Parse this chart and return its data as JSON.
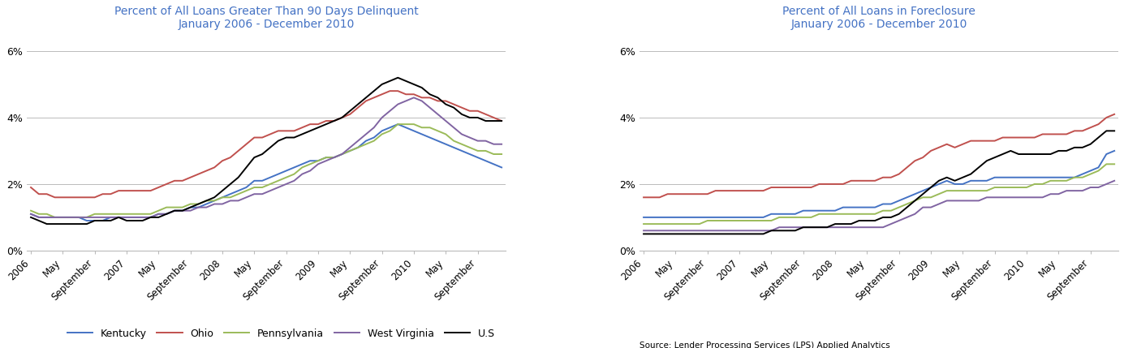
{
  "title1": "Percent of All Loans Greater Than 90 Days Delinquent",
  "title2": "Percent of All Loans in Foreclosure",
  "subtitle": "January 2006 - December 2010",
  "title_color": "#4472C4",
  "source_text": "Source: Lender Processing Services (LPS) Applied Analytics\nPrepared by the Federal Reserve Bank of Cleveland's Community Development team",
  "legend_labels": [
    "Kentucky",
    "Ohio",
    "Pennsylvania",
    "West Virginia",
    "U.S"
  ],
  "line_colors": [
    "#4472C4",
    "#C0504D",
    "#9BBB59",
    "#8064A2",
    "#000000"
  ],
  "x_tick_labels": [
    "2006",
    "May",
    "September",
    "2007",
    "May",
    "September",
    "2008",
    "May",
    "September",
    "2009",
    "May",
    "September",
    "2010",
    "May",
    "September"
  ],
  "ylim": [
    0,
    0.065
  ],
  "yticks": [
    0,
    0.02,
    0.04,
    0.06
  ],
  "ytick_labels": [
    "0%",
    "2%",
    "4%",
    "6%"
  ],
  "delinquent": {
    "Kentucky": [
      0.011,
      0.01,
      0.01,
      0.01,
      0.01,
      0.01,
      0.01,
      0.009,
      0.009,
      0.009,
      0.01,
      0.01,
      0.01,
      0.01,
      0.01,
      0.01,
      0.011,
      0.011,
      0.012,
      0.012,
      0.013,
      0.013,
      0.014,
      0.015,
      0.016,
      0.017,
      0.018,
      0.019,
      0.021,
      0.021,
      0.022,
      0.023,
      0.024,
      0.025,
      0.026,
      0.027,
      0.027,
      0.028,
      0.028,
      0.029,
      0.03,
      0.031,
      0.033,
      0.034,
      0.036,
      0.037,
      0.038,
      0.037,
      0.036,
      0.035,
      0.034,
      0.033,
      0.032,
      0.031,
      0.03,
      0.029,
      0.028,
      0.027,
      0.026,
      0.025
    ],
    "Ohio": [
      0.019,
      0.017,
      0.017,
      0.016,
      0.016,
      0.016,
      0.016,
      0.016,
      0.016,
      0.017,
      0.017,
      0.018,
      0.018,
      0.018,
      0.018,
      0.018,
      0.019,
      0.02,
      0.021,
      0.021,
      0.022,
      0.023,
      0.024,
      0.025,
      0.027,
      0.028,
      0.03,
      0.032,
      0.034,
      0.034,
      0.035,
      0.036,
      0.036,
      0.036,
      0.037,
      0.038,
      0.038,
      0.039,
      0.039,
      0.04,
      0.041,
      0.043,
      0.045,
      0.046,
      0.047,
      0.048,
      0.048,
      0.047,
      0.047,
      0.046,
      0.046,
      0.045,
      0.045,
      0.044,
      0.043,
      0.042,
      0.042,
      0.041,
      0.04,
      0.039
    ],
    "Pennsylvania": [
      0.012,
      0.011,
      0.011,
      0.01,
      0.01,
      0.01,
      0.01,
      0.01,
      0.011,
      0.011,
      0.011,
      0.011,
      0.011,
      0.011,
      0.011,
      0.011,
      0.012,
      0.013,
      0.013,
      0.013,
      0.014,
      0.014,
      0.015,
      0.015,
      0.016,
      0.016,
      0.017,
      0.018,
      0.019,
      0.019,
      0.02,
      0.021,
      0.022,
      0.023,
      0.025,
      0.026,
      0.027,
      0.028,
      0.028,
      0.029,
      0.03,
      0.031,
      0.032,
      0.033,
      0.035,
      0.036,
      0.038,
      0.038,
      0.038,
      0.037,
      0.037,
      0.036,
      0.035,
      0.033,
      0.032,
      0.031,
      0.03,
      0.03,
      0.029,
      0.029
    ],
    "West Virginia": [
      0.011,
      0.01,
      0.01,
      0.01,
      0.01,
      0.01,
      0.01,
      0.01,
      0.01,
      0.01,
      0.01,
      0.01,
      0.01,
      0.01,
      0.01,
      0.01,
      0.011,
      0.011,
      0.012,
      0.012,
      0.012,
      0.013,
      0.013,
      0.014,
      0.014,
      0.015,
      0.015,
      0.016,
      0.017,
      0.017,
      0.018,
      0.019,
      0.02,
      0.021,
      0.023,
      0.024,
      0.026,
      0.027,
      0.028,
      0.029,
      0.031,
      0.033,
      0.035,
      0.037,
      0.04,
      0.042,
      0.044,
      0.045,
      0.046,
      0.045,
      0.043,
      0.041,
      0.039,
      0.037,
      0.035,
      0.034,
      0.033,
      0.033,
      0.032,
      0.032
    ],
    "U.S": [
      0.01,
      0.009,
      0.008,
      0.008,
      0.008,
      0.008,
      0.008,
      0.008,
      0.009,
      0.009,
      0.009,
      0.01,
      0.009,
      0.009,
      0.009,
      0.01,
      0.01,
      0.011,
      0.012,
      0.012,
      0.013,
      0.014,
      0.015,
      0.016,
      0.018,
      0.02,
      0.022,
      0.025,
      0.028,
      0.029,
      0.031,
      0.033,
      0.034,
      0.034,
      0.035,
      0.036,
      0.037,
      0.038,
      0.039,
      0.04,
      0.042,
      0.044,
      0.046,
      0.048,
      0.05,
      0.051,
      0.052,
      0.051,
      0.05,
      0.049,
      0.047,
      0.046,
      0.044,
      0.043,
      0.041,
      0.04,
      0.04,
      0.039,
      0.039,
      0.039
    ]
  },
  "foreclosure": {
    "Kentucky": [
      0.01,
      0.01,
      0.01,
      0.01,
      0.01,
      0.01,
      0.01,
      0.01,
      0.01,
      0.01,
      0.01,
      0.01,
      0.01,
      0.01,
      0.01,
      0.01,
      0.011,
      0.011,
      0.011,
      0.011,
      0.012,
      0.012,
      0.012,
      0.012,
      0.012,
      0.013,
      0.013,
      0.013,
      0.013,
      0.013,
      0.014,
      0.014,
      0.015,
      0.016,
      0.017,
      0.018,
      0.019,
      0.02,
      0.021,
      0.02,
      0.02,
      0.021,
      0.021,
      0.021,
      0.022,
      0.022,
      0.022,
      0.022,
      0.022,
      0.022,
      0.022,
      0.022,
      0.022,
      0.022,
      0.022,
      0.023,
      0.024,
      0.025,
      0.029,
      0.03
    ],
    "Ohio": [
      0.016,
      0.016,
      0.016,
      0.017,
      0.017,
      0.017,
      0.017,
      0.017,
      0.017,
      0.018,
      0.018,
      0.018,
      0.018,
      0.018,
      0.018,
      0.018,
      0.019,
      0.019,
      0.019,
      0.019,
      0.019,
      0.019,
      0.02,
      0.02,
      0.02,
      0.02,
      0.021,
      0.021,
      0.021,
      0.021,
      0.022,
      0.022,
      0.023,
      0.025,
      0.027,
      0.028,
      0.03,
      0.031,
      0.032,
      0.031,
      0.032,
      0.033,
      0.033,
      0.033,
      0.033,
      0.034,
      0.034,
      0.034,
      0.034,
      0.034,
      0.035,
      0.035,
      0.035,
      0.035,
      0.036,
      0.036,
      0.037,
      0.038,
      0.04,
      0.041
    ],
    "Pennsylvania": [
      0.008,
      0.008,
      0.008,
      0.008,
      0.008,
      0.008,
      0.008,
      0.008,
      0.009,
      0.009,
      0.009,
      0.009,
      0.009,
      0.009,
      0.009,
      0.009,
      0.009,
      0.01,
      0.01,
      0.01,
      0.01,
      0.01,
      0.011,
      0.011,
      0.011,
      0.011,
      0.011,
      0.011,
      0.011,
      0.011,
      0.012,
      0.012,
      0.013,
      0.014,
      0.015,
      0.016,
      0.016,
      0.017,
      0.018,
      0.018,
      0.018,
      0.018,
      0.018,
      0.018,
      0.019,
      0.019,
      0.019,
      0.019,
      0.019,
      0.02,
      0.02,
      0.021,
      0.021,
      0.021,
      0.022,
      0.022,
      0.023,
      0.024,
      0.026,
      0.026
    ],
    "West Virginia": [
      0.006,
      0.006,
      0.006,
      0.006,
      0.006,
      0.006,
      0.006,
      0.006,
      0.006,
      0.006,
      0.006,
      0.006,
      0.006,
      0.006,
      0.006,
      0.006,
      0.006,
      0.007,
      0.007,
      0.007,
      0.007,
      0.007,
      0.007,
      0.007,
      0.007,
      0.007,
      0.007,
      0.007,
      0.007,
      0.007,
      0.007,
      0.008,
      0.009,
      0.01,
      0.011,
      0.013,
      0.013,
      0.014,
      0.015,
      0.015,
      0.015,
      0.015,
      0.015,
      0.016,
      0.016,
      0.016,
      0.016,
      0.016,
      0.016,
      0.016,
      0.016,
      0.017,
      0.017,
      0.018,
      0.018,
      0.018,
      0.019,
      0.019,
      0.02,
      0.021
    ],
    "U.S": [
      0.005,
      0.005,
      0.005,
      0.005,
      0.005,
      0.005,
      0.005,
      0.005,
      0.005,
      0.005,
      0.005,
      0.005,
      0.005,
      0.005,
      0.005,
      0.005,
      0.006,
      0.006,
      0.006,
      0.006,
      0.007,
      0.007,
      0.007,
      0.007,
      0.008,
      0.008,
      0.008,
      0.009,
      0.009,
      0.009,
      0.01,
      0.01,
      0.011,
      0.013,
      0.015,
      0.017,
      0.019,
      0.021,
      0.022,
      0.021,
      0.022,
      0.023,
      0.025,
      0.027,
      0.028,
      0.029,
      0.03,
      0.029,
      0.029,
      0.029,
      0.029,
      0.029,
      0.03,
      0.03,
      0.031,
      0.031,
      0.032,
      0.034,
      0.036,
      0.036
    ]
  }
}
